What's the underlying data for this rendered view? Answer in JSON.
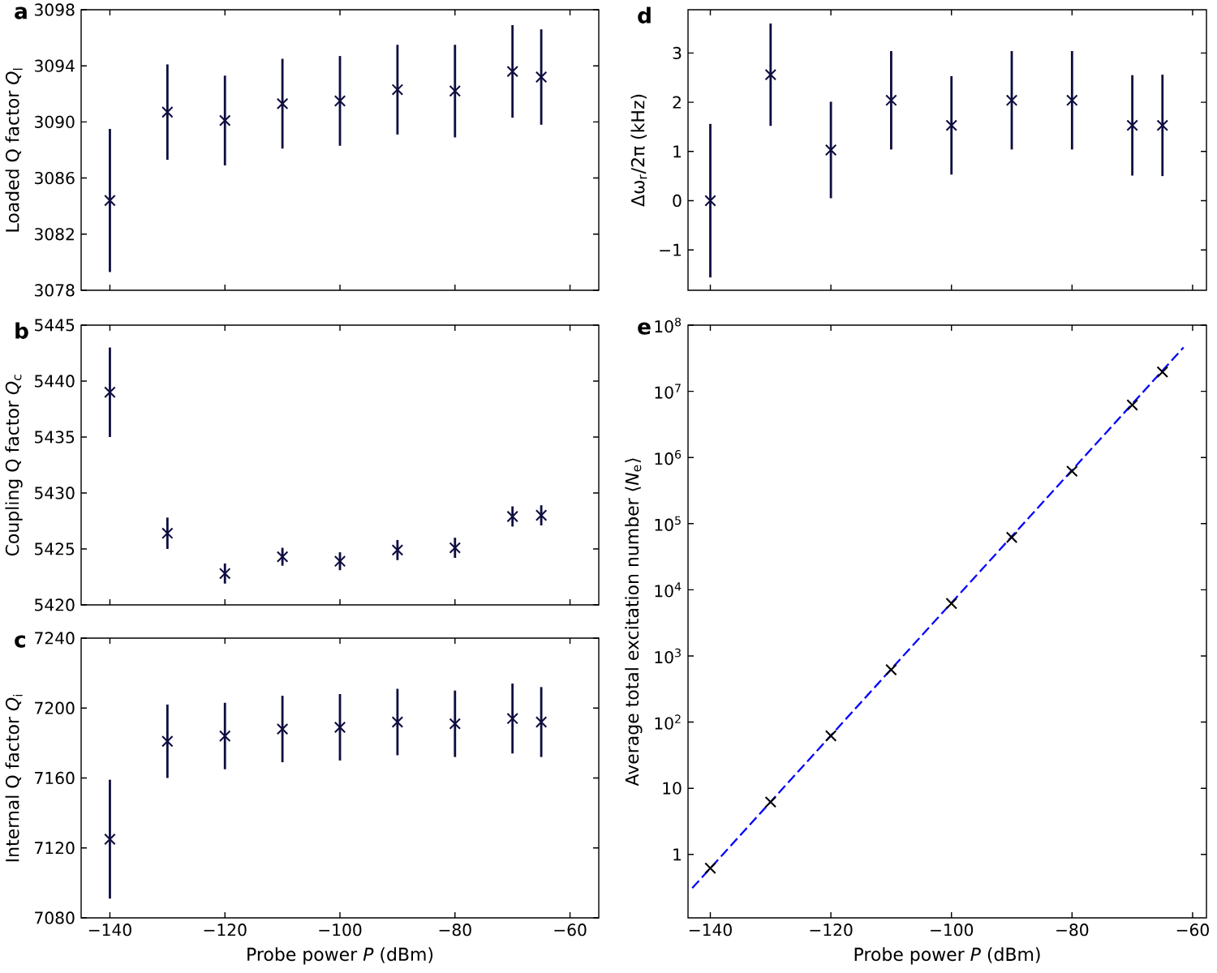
{
  "chart_data": [
    {
      "type": "scatter",
      "title": "**a**",
      "ylabel": "Loaded Q factor *Q*$_{l}$",
      "x": [
        -140,
        -130,
        -120,
        -110,
        -100,
        -90,
        -80,
        -70,
        -65
      ],
      "marker": "cross",
      "tick_labels": "y",
      "series": [
        {
          "color": "#0d0d40",
          "values": [
            3084.4,
            3090.7,
            3090.1,
            3091.3,
            3091.5,
            3092.3,
            3092.2,
            3093.6,
            3093.2
          ],
          "errors": [
            5.1,
            3.4,
            3.2,
            3.2,
            3.2,
            3.2,
            3.3,
            3.3,
            3.4
          ]
        }
      ],
      "xlim": [
        -145,
        -55
      ],
      "xticks": [
        -140,
        -120,
        -100,
        -80,
        -60
      ],
      "ylim": [
        3078,
        3098
      ],
      "yticks": [
        3078,
        3082,
        3086,
        3090,
        3094,
        3098
      ]
    },
    {
      "type": "scatter",
      "title": "**b**",
      "ylabel": "Coupling Q factor *Q*$_{c}$",
      "x": [
        -140,
        -130,
        -120,
        -110,
        -100,
        -90,
        -80,
        -70,
        -65
      ],
      "marker": "cross",
      "tick_labels": "y",
      "series": [
        {
          "color": "#0d0d40",
          "values": [
            5439.0,
            5426.4,
            5422.8,
            5424.3,
            5423.9,
            5424.9,
            5425.1,
            5427.9,
            5428.0
          ],
          "errors": [
            4.0,
            1.4,
            0.9,
            0.8,
            0.8,
            0.9,
            0.9,
            0.9,
            0.9
          ]
        }
      ],
      "xlim": [
        -145,
        -55
      ],
      "xticks": [
        -140,
        -120,
        -100,
        -80,
        -60
      ],
      "ylim": [
        5420,
        5445
      ],
      "yticks": [
        5420,
        5425,
        5430,
        5435,
        5440,
        5445
      ]
    },
    {
      "type": "scatter",
      "title": "**c**",
      "ylabel": "Internal Q factor *Q*$_{i}$",
      "xlabel": "Probe power *P* (dBm)",
      "x": [
        -140,
        -130,
        -120,
        -110,
        -100,
        -90,
        -80,
        -70,
        -65
      ],
      "marker": "cross",
      "series": [
        {
          "color": "#0d0d40",
          "values": [
            7125,
            7181,
            7184,
            7188,
            7189,
            7192,
            7191,
            7194,
            7192
          ],
          "errors": [
            34,
            21,
            19,
            19,
            19,
            19,
            19,
            20,
            20
          ]
        }
      ],
      "xlim": [
        -145,
        -55
      ],
      "xticks": [
        {
          "value": -140,
          "label": "−140"
        },
        {
          "value": -120,
          "label": "−120"
        },
        {
          "value": -100,
          "label": "−100"
        },
        {
          "value": -80,
          "label": "−80"
        },
        {
          "value": -60,
          "label": "−60"
        }
      ],
      "ylim": [
        7080,
        7240
      ],
      "yticks": [
        7080,
        7120,
        7160,
        7200,
        7240
      ]
    },
    {
      "type": "scatter",
      "title": "**d**",
      "ylabel": "Δω$_{r}$/2π (kHz)",
      "x": [
        -140,
        -130,
        -120,
        -110,
        -100,
        -90,
        -80,
        -70,
        -65
      ],
      "marker": "cross",
      "tick_labels": "y",
      "series": [
        {
          "color": "#0d0d40",
          "values": [
            0.0,
            2.56,
            1.03,
            2.04,
            1.53,
            2.04,
            2.04,
            1.53,
            1.53
          ],
          "errors": [
            1.56,
            1.04,
            0.98,
            1.0,
            1.0,
            1.0,
            1.0,
            1.02,
            1.03
          ]
        }
      ],
      "xlim": [
        -143.7,
        -57.7
      ],
      "xticks": [
        -140,
        -120,
        -100,
        -80,
        -60
      ],
      "ylim": [
        -1.82,
        3.88
      ],
      "yticks": [
        {
          "value": -1,
          "label": "−1"
        },
        0,
        1,
        2,
        3
      ]
    },
    {
      "type": "scatter",
      "title": "**e**",
      "ylabel": "Average total excitation number ⟨*N*$_{e}$⟩",
      "xlabel": "Probe power *P* (dBm)",
      "x": [
        -140,
        -130,
        -120,
        -110,
        -100,
        -90,
        -80,
        -70,
        -65
      ],
      "marker": "cross",
      "log": "y",
      "series": [
        {
          "color": "#000000",
          "values": [
            0.62,
            6.2,
            62,
            620,
            6200,
            62000,
            620000,
            6200000,
            19600000
          ]
        },
        {
          "type": "line",
          "color": "#0000ff",
          "line_style": "dashed",
          "marker": "none",
          "x": [
            -143,
            -61.5
          ],
          "values": [
            0.31,
            46000000
          ]
        }
      ],
      "xlim": [
        -143.7,
        -57.7
      ],
      "xticks": [
        {
          "value": -140,
          "label": "−140"
        },
        {
          "value": -120,
          "label": "−120"
        },
        {
          "value": -100,
          "label": "−100"
        },
        {
          "value": -80,
          "label": "−80"
        },
        {
          "value": -60,
          "label": "−60"
        }
      ],
      "ylim": [
        0.11,
        100000000
      ],
      "yticks": [
        1,
        10,
        {
          "value": 100,
          "label": "10$^{2}$"
        },
        {
          "value": 1000,
          "label": "10$^{3}$"
        },
        {
          "value": 10000,
          "label": "10$^{4}$"
        },
        {
          "value": 100000,
          "label": "10$^{5}$"
        },
        {
          "value": 1000000,
          "label": "10$^{6}$"
        },
        {
          "value": 10000000,
          "label": "10$^{7}$"
        },
        {
          "value": 100000000,
          "label": "10$^{8}$"
        }
      ]
    }
  ]
}
